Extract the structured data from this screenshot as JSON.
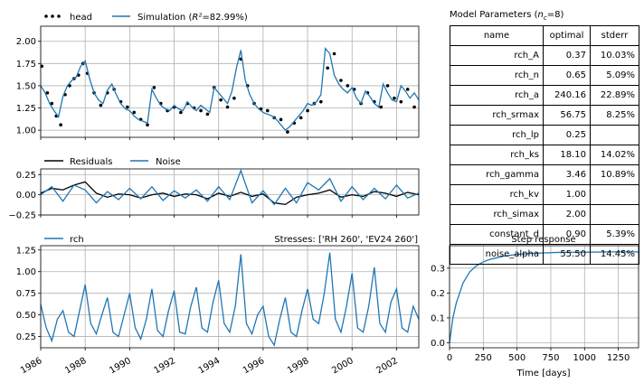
{
  "chart_data": [
    {
      "type": "line",
      "panel": "model-fit",
      "legend": [
        "head",
        "Simulation (R²=82.99%)"
      ],
      "legend_head": "head",
      "legend_sim_prefix": "Simulation (",
      "legend_sim_r2": "R²",
      "legend_sim_suffix": "=82.99%)",
      "ylim": [
        0.92,
        2.17
      ],
      "yticks": [
        "1.00",
        "1.25",
        "1.50",
        "1.75",
        "2.00"
      ],
      "ytick_values": [
        1.0,
        1.25,
        1.5,
        1.75,
        2.0
      ],
      "xlim": [
        1986.0,
        2003.0
      ],
      "grid": true,
      "legend_position": "top-left (outside)",
      "colors": {
        "observed": "#000000",
        "simulation": "#1f77b4"
      },
      "series": [
        {
          "name": "head",
          "style": "points",
          "x": [
            1986.05,
            1986.3,
            1986.5,
            1986.7,
            1986.9,
            1987.1,
            1987.3,
            1987.5,
            1987.7,
            1987.9,
            1988.1,
            1988.4,
            1988.7,
            1989.0,
            1989.3,
            1989.6,
            1989.9,
            1990.2,
            1990.5,
            1990.8,
            1991.1,
            1991.4,
            1991.7,
            1992.0,
            1992.3,
            1992.6,
            1992.9,
            1993.2,
            1993.5,
            1993.8,
            1994.1,
            1994.4,
            1994.7,
            1995.0,
            1995.3,
            1995.6,
            1995.9,
            1996.2,
            1996.5,
            1996.8,
            1997.1,
            1997.4,
            1997.7,
            1998.0,
            1998.3,
            1998.6,
            1998.9,
            1999.2,
            1999.5,
            1999.8,
            2000.1,
            2000.4,
            2000.7,
            2001.0,
            2001.3,
            2001.6,
            2001.9,
            2002.2,
            2002.5,
            2002.8
          ],
          "y": [
            1.72,
            1.42,
            1.3,
            1.16,
            1.06,
            1.4,
            1.5,
            1.58,
            1.62,
            1.75,
            1.64,
            1.42,
            1.28,
            1.42,
            1.46,
            1.32,
            1.26,
            1.2,
            1.12,
            1.06,
            1.48,
            1.3,
            1.22,
            1.26,
            1.2,
            1.3,
            1.25,
            1.22,
            1.18,
            1.48,
            1.34,
            1.26,
            1.36,
            1.8,
            1.5,
            1.3,
            1.24,
            1.22,
            1.14,
            1.12,
            0.98,
            1.08,
            1.14,
            1.22,
            1.3,
            1.32,
            1.7,
            1.86,
            1.56,
            1.5,
            1.46,
            1.3,
            1.42,
            1.32,
            1.26,
            1.5,
            1.36,
            1.32,
            1.46,
            1.26
          ]
        },
        {
          "name": "Simulation",
          "style": "line",
          "x": [
            1986.0,
            1986.2,
            1986.4,
            1986.6,
            1986.8,
            1987.0,
            1987.2,
            1987.4,
            1987.6,
            1987.8,
            1988.0,
            1988.2,
            1988.4,
            1988.6,
            1988.8,
            1989.0,
            1989.2,
            1989.4,
            1989.6,
            1989.8,
            1990.0,
            1990.2,
            1990.4,
            1990.6,
            1990.8,
            1991.0,
            1991.2,
            1991.4,
            1991.6,
            1991.8,
            1992.0,
            1992.2,
            1992.4,
            1992.6,
            1992.8,
            1993.0,
            1993.2,
            1993.4,
            1993.6,
            1993.8,
            1994.0,
            1994.2,
            1994.4,
            1994.6,
            1994.8,
            1995.0,
            1995.2,
            1995.4,
            1995.6,
            1995.8,
            1996.0,
            1996.2,
            1996.4,
            1996.6,
            1996.8,
            1997.0,
            1997.2,
            1997.4,
            1997.6,
            1997.8,
            1998.0,
            1998.2,
            1998.4,
            1998.6,
            1998.8,
            1999.0,
            1999.2,
            1999.4,
            1999.6,
            1999.8,
            2000.0,
            2000.2,
            2000.4,
            2000.6,
            2000.8,
            2001.0,
            2001.2,
            2001.4,
            2001.6,
            2001.8,
            2002.0,
            2002.2,
            2002.4,
            2002.6,
            2002.8,
            2003.0
          ],
          "y": [
            1.5,
            1.42,
            1.3,
            1.22,
            1.15,
            1.38,
            1.5,
            1.56,
            1.6,
            1.72,
            1.78,
            1.58,
            1.42,
            1.34,
            1.3,
            1.45,
            1.52,
            1.4,
            1.3,
            1.24,
            1.22,
            1.16,
            1.12,
            1.1,
            1.08,
            1.46,
            1.36,
            1.28,
            1.24,
            1.22,
            1.28,
            1.24,
            1.22,
            1.32,
            1.26,
            1.22,
            1.28,
            1.24,
            1.2,
            1.48,
            1.42,
            1.36,
            1.3,
            1.44,
            1.7,
            1.9,
            1.56,
            1.4,
            1.3,
            1.24,
            1.2,
            1.18,
            1.16,
            1.12,
            1.06,
            1.0,
            1.04,
            1.1,
            1.16,
            1.22,
            1.3,
            1.28,
            1.32,
            1.4,
            1.92,
            1.86,
            1.62,
            1.52,
            1.46,
            1.42,
            1.48,
            1.36,
            1.3,
            1.44,
            1.38,
            1.3,
            1.26,
            1.52,
            1.42,
            1.34,
            1.32,
            1.5,
            1.44,
            1.36,
            1.42,
            1.34
          ]
        }
      ]
    },
    {
      "type": "line",
      "panel": "residuals",
      "legend": [
        "Residuals",
        "Noise"
      ],
      "ylim": [
        -0.25,
        0.32
      ],
      "yticks": [
        "0.25",
        "0.00",
        "−0.25"
      ],
      "ytick_values": [
        0.25,
        0.0,
        -0.25
      ],
      "xlim": [
        1986.0,
        2003.0
      ],
      "grid": true,
      "legend_position": "top-left (outside)",
      "colors": {
        "residuals": "#000000",
        "noise": "#1f77b4"
      },
      "series": [
        {
          "name": "Residuals",
          "x": [
            1986.0,
            1986.5,
            1987.0,
            1987.5,
            1988.0,
            1988.5,
            1989.0,
            1989.5,
            1990.0,
            1990.5,
            1991.0,
            1991.5,
            1992.0,
            1992.5,
            1993.0,
            1993.5,
            1994.0,
            1994.5,
            1995.0,
            1995.5,
            1996.0,
            1996.5,
            1997.0,
            1997.5,
            1998.0,
            1998.5,
            1999.0,
            1999.5,
            2000.0,
            2000.5,
            2001.0,
            2001.5,
            2002.0,
            2002.5,
            2003.0
          ],
          "y": [
            0.02,
            0.08,
            0.06,
            0.12,
            0.16,
            0.02,
            -0.03,
            0.01,
            0.0,
            -0.04,
            0.0,
            0.02,
            -0.02,
            0.01,
            0.0,
            -0.05,
            0.02,
            -0.02,
            0.03,
            -0.02,
            0.01,
            -0.1,
            -0.12,
            -0.03,
            0.0,
            0.02,
            0.06,
            -0.03,
            0.0,
            -0.02,
            0.04,
            0.02,
            -0.02,
            0.03,
            0.0
          ]
        },
        {
          "name": "Noise",
          "x": [
            1986.0,
            1986.5,
            1987.0,
            1987.5,
            1988.0,
            1988.5,
            1989.0,
            1989.5,
            1990.0,
            1990.5,
            1991.0,
            1991.5,
            1992.0,
            1992.5,
            1993.0,
            1993.5,
            1994.0,
            1994.5,
            1995.0,
            1995.5,
            1996.0,
            1996.5,
            1997.0,
            1997.5,
            1998.0,
            1998.5,
            1999.0,
            1999.5,
            2000.0,
            2000.5,
            2001.0,
            2001.5,
            2002.0,
            2002.5,
            2003.0
          ],
          "y": [
            0.0,
            0.1,
            -0.08,
            0.12,
            0.06,
            -0.1,
            0.04,
            -0.06,
            0.08,
            -0.05,
            0.1,
            -0.07,
            0.05,
            -0.04,
            0.06,
            -0.08,
            0.1,
            -0.06,
            0.3,
            -0.1,
            0.05,
            -0.12,
            0.08,
            -0.1,
            0.15,
            0.06,
            0.2,
            -0.08,
            0.1,
            -0.06,
            0.08,
            -0.05,
            0.12,
            -0.04,
            0.02
          ]
        }
      ]
    },
    {
      "type": "line",
      "panel": "stresses",
      "title": "Stresses: ['RH 260', 'EV24 260']",
      "legend": [
        "rch"
      ],
      "ylim": [
        0.12,
        1.3
      ],
      "yticks": [
        "0.25",
        "0.50",
        "0.75",
        "1.00",
        "1.25"
      ],
      "ytick_values": [
        0.25,
        0.5,
        0.75,
        1.0,
        1.25
      ],
      "xlim": [
        1986.0,
        2003.0
      ],
      "xticks": [
        "1986",
        "1988",
        "1990",
        "1992",
        "1994",
        "1996",
        "1998",
        "2000",
        "2002"
      ],
      "xtick_values": [
        1986,
        1988,
        1990,
        1992,
        1994,
        1996,
        1998,
        2000,
        2002
      ],
      "grid": true,
      "legend_position": "top-left (outside)",
      "colors": {
        "rch": "#1f77b4"
      },
      "series": [
        {
          "name": "rch",
          "x": [
            1986.0,
            1986.25,
            1986.5,
            1986.75,
            1987.0,
            1987.25,
            1987.5,
            1987.75,
            1988.0,
            1988.25,
            1988.5,
            1988.75,
            1989.0,
            1989.25,
            1989.5,
            1989.75,
            1990.0,
            1990.25,
            1990.5,
            1990.75,
            1991.0,
            1991.25,
            1991.5,
            1991.75,
            1992.0,
            1992.25,
            1992.5,
            1992.75,
            1993.0,
            1993.25,
            1993.5,
            1993.75,
            1994.0,
            1994.25,
            1994.5,
            1994.75,
            1995.0,
            1995.25,
            1995.5,
            1995.75,
            1996.0,
            1996.25,
            1996.5,
            1996.75,
            1997.0,
            1997.25,
            1997.5,
            1997.75,
            1998.0,
            1998.25,
            1998.5,
            1998.75,
            1999.0,
            1999.25,
            1999.5,
            1999.75,
            2000.0,
            2000.25,
            2000.5,
            2000.75,
            2001.0,
            2001.25,
            2001.5,
            2001.75,
            2002.0,
            2002.25,
            2002.5,
            2002.75,
            2003.0
          ],
          "y": [
            0.62,
            0.35,
            0.2,
            0.45,
            0.55,
            0.3,
            0.25,
            0.55,
            0.85,
            0.4,
            0.28,
            0.5,
            0.7,
            0.3,
            0.25,
            0.5,
            0.75,
            0.35,
            0.22,
            0.45,
            0.8,
            0.32,
            0.25,
            0.55,
            0.78,
            0.3,
            0.28,
            0.6,
            0.82,
            0.35,
            0.3,
            0.65,
            0.9,
            0.4,
            0.3,
            0.6,
            1.2,
            0.4,
            0.28,
            0.5,
            0.6,
            0.25,
            0.15,
            0.45,
            0.7,
            0.3,
            0.25,
            0.55,
            0.8,
            0.45,
            0.4,
            0.75,
            1.22,
            0.45,
            0.3,
            0.6,
            0.98,
            0.35,
            0.3,
            0.6,
            1.05,
            0.4,
            0.3,
            0.65,
            0.8,
            0.35,
            0.3,
            0.6,
            0.45
          ]
        }
      ]
    },
    {
      "type": "line",
      "panel": "step-response",
      "title": "Step response",
      "xlabel": "Time [days]",
      "xlim": [
        0,
        1400
      ],
      "ylim": [
        -0.02,
        0.39
      ],
      "xticks": [
        "0",
        "250",
        "500",
        "750",
        "1000",
        "1250"
      ],
      "xtick_values": [
        0,
        250,
        500,
        750,
        1000,
        1250
      ],
      "yticks": [
        "0.0",
        "0.1",
        "0.2",
        "0.3"
      ],
      "ytick_values": [
        0.0,
        0.1,
        0.2,
        0.3
      ],
      "grid": true,
      "colors": {
        "response": "#1f77b4"
      },
      "series": [
        {
          "x": [
            0,
            25,
            50,
            100,
            150,
            200,
            250,
            300,
            400,
            500,
            600,
            700,
            800,
            1000,
            1200,
            1400
          ],
          "y": [
            0.0,
            0.1,
            0.16,
            0.24,
            0.285,
            0.31,
            0.325,
            0.335,
            0.348,
            0.355,
            0.359,
            0.361,
            0.363,
            0.364,
            0.365,
            0.365
          ]
        }
      ]
    }
  ],
  "params": {
    "title_prefix": "Model Parameters (",
    "title_var": "n",
    "title_sub": "c",
    "title_suffix": "=8)",
    "columns": [
      "name",
      "optimal",
      "stderr"
    ],
    "rows": [
      [
        "rch_A",
        "0.37",
        "10.03%"
      ],
      [
        "rch_n",
        "0.65",
        "5.09%"
      ],
      [
        "rch_a",
        "240.16",
        "22.89%"
      ],
      [
        "rch_srmax",
        "56.75",
        "8.25%"
      ],
      [
        "rch_lp",
        "0.25",
        ""
      ],
      [
        "rch_ks",
        "18.10",
        "14.02%"
      ],
      [
        "rch_gamma",
        "3.46",
        "10.89%"
      ],
      [
        "rch_kv",
        "1.00",
        ""
      ],
      [
        "rch_simax",
        "2.00",
        ""
      ],
      [
        "constant_d",
        "0.90",
        "5.39%"
      ],
      [
        "noise_alpha",
        "55.50",
        "14.45%"
      ]
    ]
  }
}
